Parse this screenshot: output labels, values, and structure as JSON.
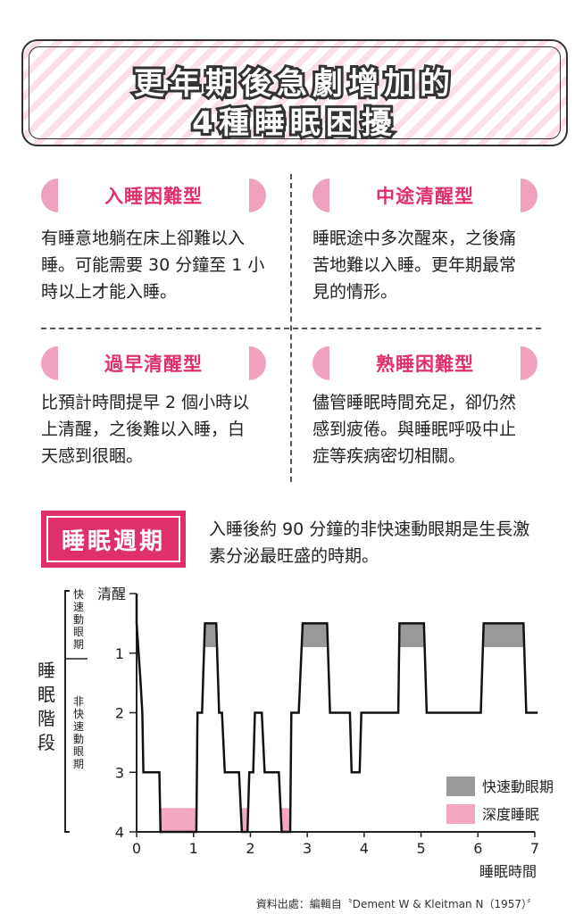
{
  "title": {
    "line1": "更年期後急劇增加的",
    "line2": "4種睡眠困擾"
  },
  "types": [
    {
      "name": "入睡困難型",
      "desc": [
        "有睡意地躺在床上卻難以入",
        "睡。可能需要 30 分鐘至 1 小",
        "時以上才能入睡。"
      ]
    },
    {
      "name": "中途清醒型",
      "desc": [
        "睡眠途中多次醒來，之後痛",
        "苦地難以入睡。更年期最常",
        "見的情形。"
      ]
    },
    {
      "name": "過早清醒型",
      "desc": [
        "比預計時間提早 2 個小時以",
        "上清醒，之後難以入睡，白",
        "天感到很睏。"
      ]
    },
    {
      "name": "熟睡困難型",
      "desc": [
        "儘管睡眠時間充足，卻仍然",
        "感到疲倦。與睡眠呼吸中止",
        "症等疾病密切相關。"
      ]
    }
  ],
  "cycle": {
    "label": "睡眠週期",
    "desc": [
      "入睡後約 90 分鐘的非快速動眼期是生長激",
      "素分泌最旺盛的時期。"
    ]
  },
  "chart_data": {
    "type": "line",
    "xlabel": "睡眠時間",
    "ylabel": "睡眠階段",
    "x_ticks": [
      "0",
      "1",
      "2",
      "3",
      "4",
      "5",
      "6",
      "7"
    ],
    "y_ticks": [
      "清醒",
      "1",
      "2",
      "3",
      "4"
    ],
    "xlim": [
      0,
      7
    ],
    "ylim": [
      0,
      4
    ],
    "y_inverted": true,
    "y_groups": [
      {
        "label": "快速動眼期",
        "from": 0,
        "to": 1
      },
      {
        "label": "非快速動眼期",
        "from": 1,
        "to": 4
      }
    ],
    "hypnogram": [
      [
        0,
        0
      ],
      [
        0,
        0.5
      ],
      [
        0.07,
        1.5
      ],
      [
        0.1,
        2
      ],
      [
        0.12,
        3
      ],
      [
        0.4,
        3
      ],
      [
        0.42,
        4
      ],
      [
        1.05,
        4
      ],
      [
        1.07,
        2
      ],
      [
        1.15,
        2
      ],
      [
        1.2,
        0.5
      ],
      [
        1.4,
        0.5
      ],
      [
        1.45,
        2
      ],
      [
        1.5,
        2
      ],
      [
        1.55,
        3
      ],
      [
        1.8,
        3
      ],
      [
        1.85,
        4
      ],
      [
        1.95,
        4
      ],
      [
        1.98,
        3
      ],
      [
        2.05,
        3
      ],
      [
        2.08,
        2
      ],
      [
        2.2,
        2
      ],
      [
        2.25,
        3
      ],
      [
        2.5,
        3
      ],
      [
        2.55,
        4
      ],
      [
        2.7,
        4
      ],
      [
        2.72,
        2
      ],
      [
        2.85,
        2
      ],
      [
        2.92,
        0.5
      ],
      [
        3.35,
        0.5
      ],
      [
        3.4,
        2
      ],
      [
        3.75,
        2
      ],
      [
        3.78,
        3
      ],
      [
        3.92,
        3
      ],
      [
        3.95,
        2
      ],
      [
        4.6,
        2
      ],
      [
        4.62,
        0.5
      ],
      [
        5.05,
        0.5
      ],
      [
        5.1,
        2
      ],
      [
        6.05,
        2
      ],
      [
        6.1,
        0.5
      ],
      [
        6.8,
        0.5
      ],
      [
        6.85,
        2
      ],
      [
        7.05,
        2
      ]
    ],
    "series": [
      {
        "name": "快速動眼期",
        "color": "#999999",
        "intervals": [
          [
            1.2,
            1.4
          ],
          [
            2.92,
            3.35
          ],
          [
            4.62,
            5.05
          ],
          [
            6.1,
            6.8
          ]
        ],
        "level": 0.5,
        "depth_to": 0.9
      },
      {
        "name": "深度睡眠",
        "color": "#f2a7c3",
        "intervals": [
          [
            0.42,
            1.05
          ],
          [
            1.85,
            1.95
          ],
          [
            2.55,
            2.7
          ]
        ],
        "level": 3.6,
        "depth_to": 4
      }
    ],
    "legend_position": "bottom-right"
  },
  "source": "資料出處：編輯自〝Dement W & Kleitman N（1957）〞",
  "colors": {
    "accent": "#e0306c",
    "pill": "#f0a1bf",
    "rem": "#999999",
    "deep": "#f2a7c3"
  }
}
